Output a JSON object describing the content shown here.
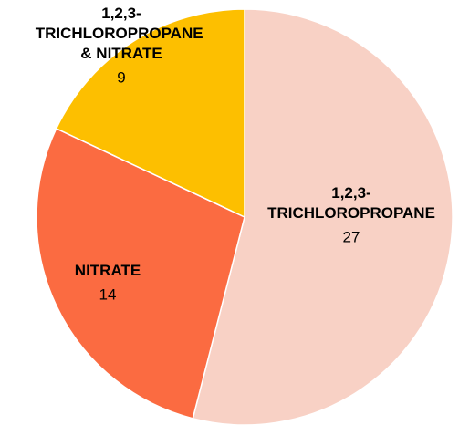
{
  "chart_data": {
    "type": "pie",
    "categories": [
      "1,2,3-TRICHLOROPROPANE",
      "NITRATE",
      "1,2,3-TRICHLOROPROPANE & NITRATE"
    ],
    "values": [
      27,
      14,
      9
    ],
    "colors": [
      "#f8d1c5",
      "#fb6b41",
      "#fdbf00"
    ]
  }
}
